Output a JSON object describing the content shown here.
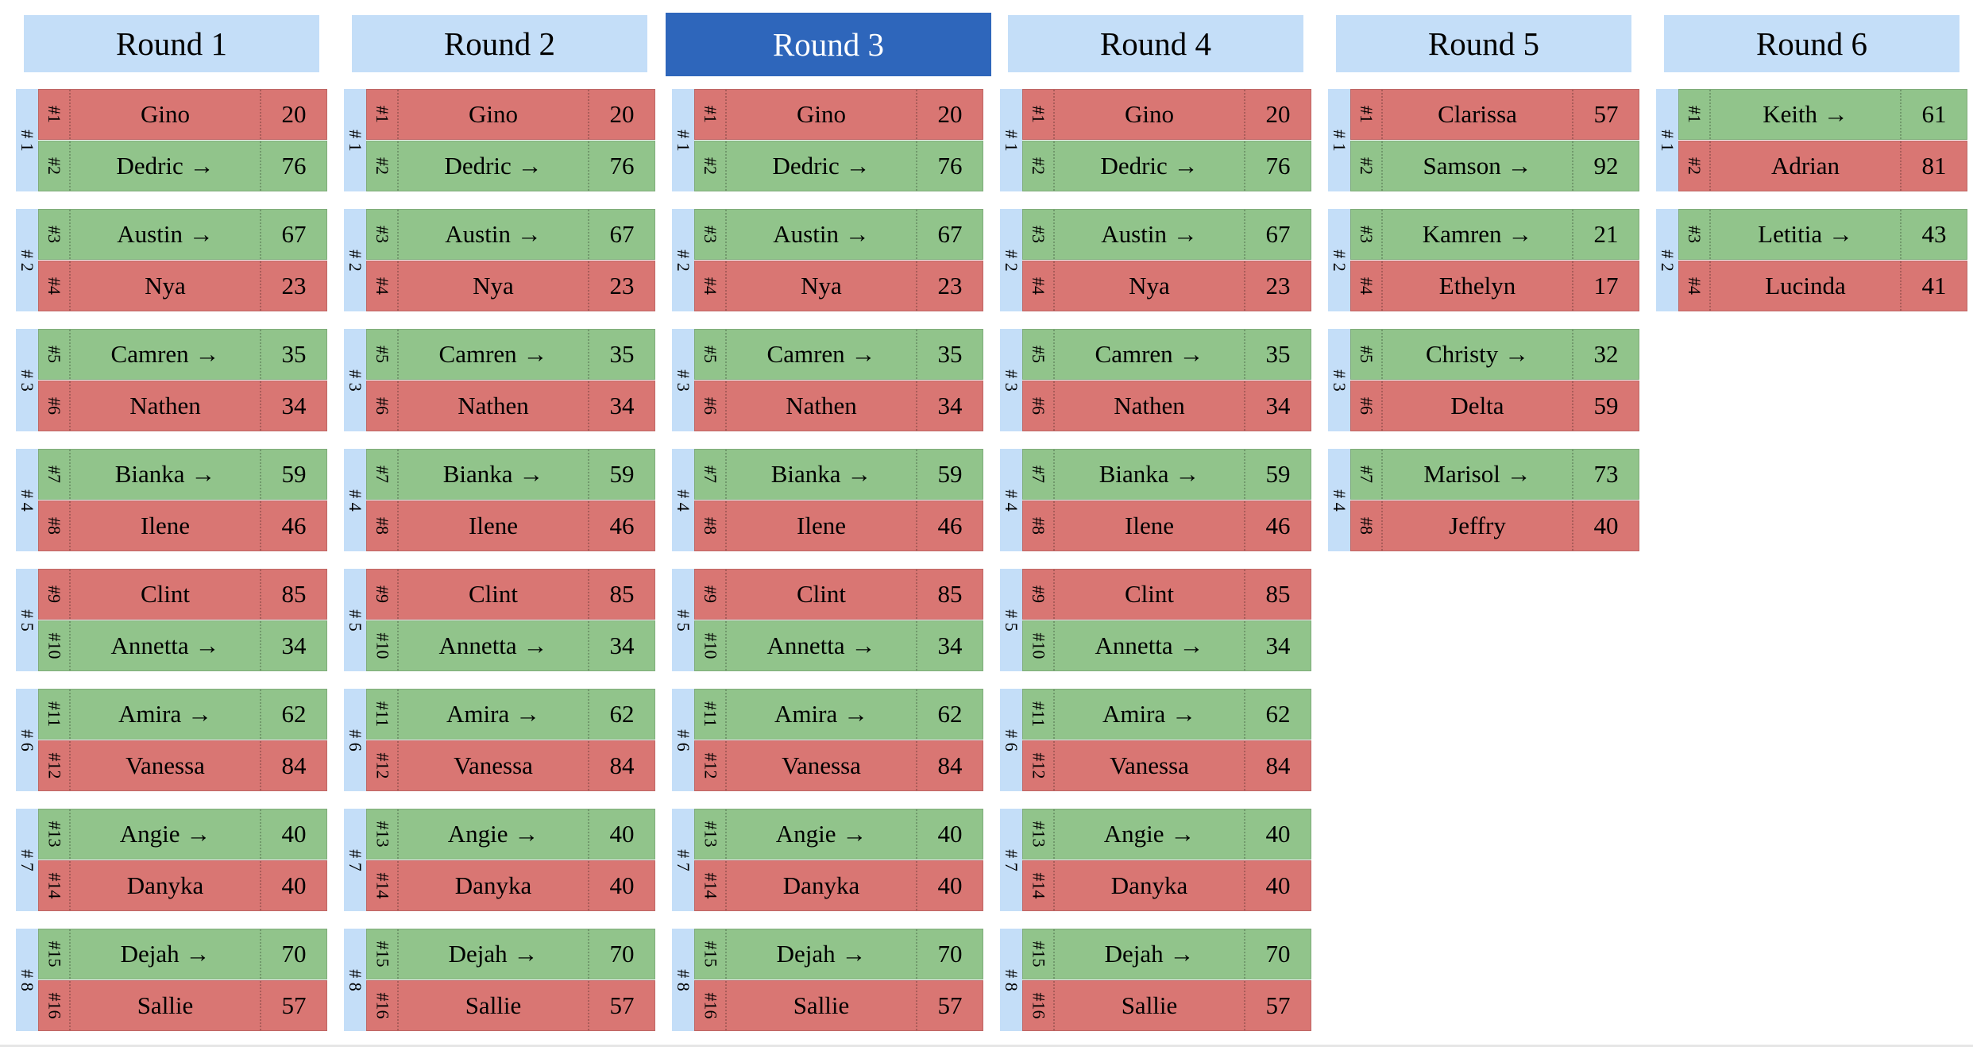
{
  "arrow": "→",
  "rounds": [
    {
      "label": "Round 1",
      "active": false,
      "matches": [
        {
          "label": "# 1",
          "players": [
            {
              "seed": "#1",
              "name": "Gino",
              "score": "20",
              "winner": false
            },
            {
              "seed": "#2",
              "name": "Dedric",
              "score": "76",
              "winner": true
            }
          ]
        },
        {
          "label": "# 2",
          "players": [
            {
              "seed": "#3",
              "name": "Austin",
              "score": "67",
              "winner": true
            },
            {
              "seed": "#4",
              "name": "Nya",
              "score": "23",
              "winner": false
            }
          ]
        },
        {
          "label": "# 3",
          "players": [
            {
              "seed": "#5",
              "name": "Camren",
              "score": "35",
              "winner": true
            },
            {
              "seed": "#6",
              "name": "Nathen",
              "score": "34",
              "winner": false
            }
          ]
        },
        {
          "label": "# 4",
          "players": [
            {
              "seed": "#7",
              "name": "Bianka",
              "score": "59",
              "winner": true
            },
            {
              "seed": "#8",
              "name": "Ilene",
              "score": "46",
              "winner": false
            }
          ]
        },
        {
          "label": "# 5",
          "players": [
            {
              "seed": "#9",
              "name": "Clint",
              "score": "85",
              "winner": false
            },
            {
              "seed": "#10",
              "name": "Annetta",
              "score": "34",
              "winner": true
            }
          ]
        },
        {
          "label": "# 6",
          "players": [
            {
              "seed": "#11",
              "name": "Amira",
              "score": "62",
              "winner": true
            },
            {
              "seed": "#12",
              "name": "Vanessa",
              "score": "84",
              "winner": false
            }
          ]
        },
        {
          "label": "# 7",
          "players": [
            {
              "seed": "#13",
              "name": "Angie",
              "score": "40",
              "winner": true
            },
            {
              "seed": "#14",
              "name": "Danyka",
              "score": "40",
              "winner": false
            }
          ]
        },
        {
          "label": "# 8",
          "players": [
            {
              "seed": "#15",
              "name": "Dejah",
              "score": "70",
              "winner": true
            },
            {
              "seed": "#16",
              "name": "Sallie",
              "score": "57",
              "winner": false
            }
          ]
        }
      ]
    },
    {
      "label": "Round 2",
      "active": false,
      "matches": [
        {
          "label": "# 1",
          "players": [
            {
              "seed": "#1",
              "name": "Gino",
              "score": "20",
              "winner": false
            },
            {
              "seed": "#2",
              "name": "Dedric",
              "score": "76",
              "winner": true
            }
          ]
        },
        {
          "label": "# 2",
          "players": [
            {
              "seed": "#3",
              "name": "Austin",
              "score": "67",
              "winner": true
            },
            {
              "seed": "#4",
              "name": "Nya",
              "score": "23",
              "winner": false
            }
          ]
        },
        {
          "label": "# 3",
          "players": [
            {
              "seed": "#5",
              "name": "Camren",
              "score": "35",
              "winner": true
            },
            {
              "seed": "#6",
              "name": "Nathen",
              "score": "34",
              "winner": false
            }
          ]
        },
        {
          "label": "# 4",
          "players": [
            {
              "seed": "#7",
              "name": "Bianka",
              "score": "59",
              "winner": true
            },
            {
              "seed": "#8",
              "name": "Ilene",
              "score": "46",
              "winner": false
            }
          ]
        },
        {
          "label": "# 5",
          "players": [
            {
              "seed": "#9",
              "name": "Clint",
              "score": "85",
              "winner": false
            },
            {
              "seed": "#10",
              "name": "Annetta",
              "score": "34",
              "winner": true
            }
          ]
        },
        {
          "label": "# 6",
          "players": [
            {
              "seed": "#11",
              "name": "Amira",
              "score": "62",
              "winner": true
            },
            {
              "seed": "#12",
              "name": "Vanessa",
              "score": "84",
              "winner": false
            }
          ]
        },
        {
          "label": "# 7",
          "players": [
            {
              "seed": "#13",
              "name": "Angie",
              "score": "40",
              "winner": true
            },
            {
              "seed": "#14",
              "name": "Danyka",
              "score": "40",
              "winner": false
            }
          ]
        },
        {
          "label": "# 8",
          "players": [
            {
              "seed": "#15",
              "name": "Dejah",
              "score": "70",
              "winner": true
            },
            {
              "seed": "#16",
              "name": "Sallie",
              "score": "57",
              "winner": false
            }
          ]
        }
      ]
    },
    {
      "label": "Round 3",
      "active": true,
      "matches": [
        {
          "label": "# 1",
          "players": [
            {
              "seed": "#1",
              "name": "Gino",
              "score": "20",
              "winner": false
            },
            {
              "seed": "#2",
              "name": "Dedric",
              "score": "76",
              "winner": true
            }
          ]
        },
        {
          "label": "# 2",
          "players": [
            {
              "seed": "#3",
              "name": "Austin",
              "score": "67",
              "winner": true
            },
            {
              "seed": "#4",
              "name": "Nya",
              "score": "23",
              "winner": false
            }
          ]
        },
        {
          "label": "# 3",
          "players": [
            {
              "seed": "#5",
              "name": "Camren",
              "score": "35",
              "winner": true
            },
            {
              "seed": "#6",
              "name": "Nathen",
              "score": "34",
              "winner": false
            }
          ]
        },
        {
          "label": "# 4",
          "players": [
            {
              "seed": "#7",
              "name": "Bianka",
              "score": "59",
              "winner": true
            },
            {
              "seed": "#8",
              "name": "Ilene",
              "score": "46",
              "winner": false
            }
          ]
        },
        {
          "label": "# 5",
          "players": [
            {
              "seed": "#9",
              "name": "Clint",
              "score": "85",
              "winner": false
            },
            {
              "seed": "#10",
              "name": "Annetta",
              "score": "34",
              "winner": true
            }
          ]
        },
        {
          "label": "# 6",
          "players": [
            {
              "seed": "#11",
              "name": "Amira",
              "score": "62",
              "winner": true
            },
            {
              "seed": "#12",
              "name": "Vanessa",
              "score": "84",
              "winner": false
            }
          ]
        },
        {
          "label": "# 7",
          "players": [
            {
              "seed": "#13",
              "name": "Angie",
              "score": "40",
              "winner": true
            },
            {
              "seed": "#14",
              "name": "Danyka",
              "score": "40",
              "winner": false
            }
          ]
        },
        {
          "label": "# 8",
          "players": [
            {
              "seed": "#15",
              "name": "Dejah",
              "score": "70",
              "winner": true
            },
            {
              "seed": "#16",
              "name": "Sallie",
              "score": "57",
              "winner": false
            }
          ]
        }
      ]
    },
    {
      "label": "Round 4",
      "active": false,
      "matches": [
        {
          "label": "# 1",
          "players": [
            {
              "seed": "#1",
              "name": "Gino",
              "score": "20",
              "winner": false
            },
            {
              "seed": "#2",
              "name": "Dedric",
              "score": "76",
              "winner": true
            }
          ]
        },
        {
          "label": "# 2",
          "players": [
            {
              "seed": "#3",
              "name": "Austin",
              "score": "67",
              "winner": true
            },
            {
              "seed": "#4",
              "name": "Nya",
              "score": "23",
              "winner": false
            }
          ]
        },
        {
          "label": "# 3",
          "players": [
            {
              "seed": "#5",
              "name": "Camren",
              "score": "35",
              "winner": true
            },
            {
              "seed": "#6",
              "name": "Nathen",
              "score": "34",
              "winner": false
            }
          ]
        },
        {
          "label": "# 4",
          "players": [
            {
              "seed": "#7",
              "name": "Bianka",
              "score": "59",
              "winner": true
            },
            {
              "seed": "#8",
              "name": "Ilene",
              "score": "46",
              "winner": false
            }
          ]
        },
        {
          "label": "# 5",
          "players": [
            {
              "seed": "#9",
              "name": "Clint",
              "score": "85",
              "winner": false
            },
            {
              "seed": "#10",
              "name": "Annetta",
              "score": "34",
              "winner": true
            }
          ]
        },
        {
          "label": "# 6",
          "players": [
            {
              "seed": "#11",
              "name": "Amira",
              "score": "62",
              "winner": true
            },
            {
              "seed": "#12",
              "name": "Vanessa",
              "score": "84",
              "winner": false
            }
          ]
        },
        {
          "label": "# 7",
          "players": [
            {
              "seed": "#13",
              "name": "Angie",
              "score": "40",
              "winner": true
            },
            {
              "seed": "#14",
              "name": "Danyka",
              "score": "40",
              "winner": false
            }
          ]
        },
        {
          "label": "# 8",
          "players": [
            {
              "seed": "#15",
              "name": "Dejah",
              "score": "70",
              "winner": true
            },
            {
              "seed": "#16",
              "name": "Sallie",
              "score": "57",
              "winner": false
            }
          ]
        }
      ]
    },
    {
      "label": "Round 5",
      "active": false,
      "matches": [
        {
          "label": "# 1",
          "players": [
            {
              "seed": "#1",
              "name": "Clarissa",
              "score": "57",
              "winner": false
            },
            {
              "seed": "#2",
              "name": "Samson",
              "score": "92",
              "winner": true
            }
          ]
        },
        {
          "label": "# 2",
          "players": [
            {
              "seed": "#3",
              "name": "Kamren",
              "score": "21",
              "winner": true
            },
            {
              "seed": "#4",
              "name": "Ethelyn",
              "score": "17",
              "winner": false
            }
          ]
        },
        {
          "label": "# 3",
          "players": [
            {
              "seed": "#5",
              "name": "Christy",
              "score": "32",
              "winner": true
            },
            {
              "seed": "#6",
              "name": "Delta",
              "score": "59",
              "winner": false
            }
          ]
        },
        {
          "label": "# 4",
          "players": [
            {
              "seed": "#7",
              "name": "Marisol",
              "score": "73",
              "winner": true
            },
            {
              "seed": "#8",
              "name": "Jeffry",
              "score": "40",
              "winner": false
            }
          ]
        }
      ]
    },
    {
      "label": "Round 6",
      "active": false,
      "matches": [
        {
          "label": "# 1",
          "players": [
            {
              "seed": "#1",
              "name": "Keith",
              "score": "61",
              "winner": true
            },
            {
              "seed": "#2",
              "name": "Adrian",
              "score": "81",
              "winner": false
            }
          ]
        },
        {
          "label": "# 2",
          "players": [
            {
              "seed": "#3",
              "name": "Letitia",
              "score": "43",
              "winner": true
            },
            {
              "seed": "#4",
              "name": "Lucinda",
              "score": "41",
              "winner": false
            }
          ]
        }
      ]
    }
  ]
}
